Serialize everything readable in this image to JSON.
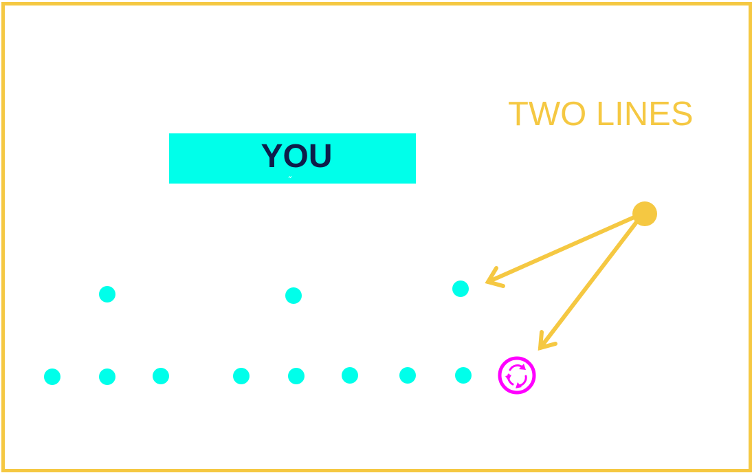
{
  "title": "TWO LINES",
  "you_label": "YOU",
  "you_glyph": "˝",
  "colors": {
    "frame": "#F5C842",
    "dot": "#00FFEA",
    "you_box": "#00FFEA",
    "you_text": "#0E1D4A",
    "arrow": "#F5C842",
    "cycle": "#FF00FF"
  },
  "icons": {
    "cycle": "cycle-arrows-icon"
  }
}
